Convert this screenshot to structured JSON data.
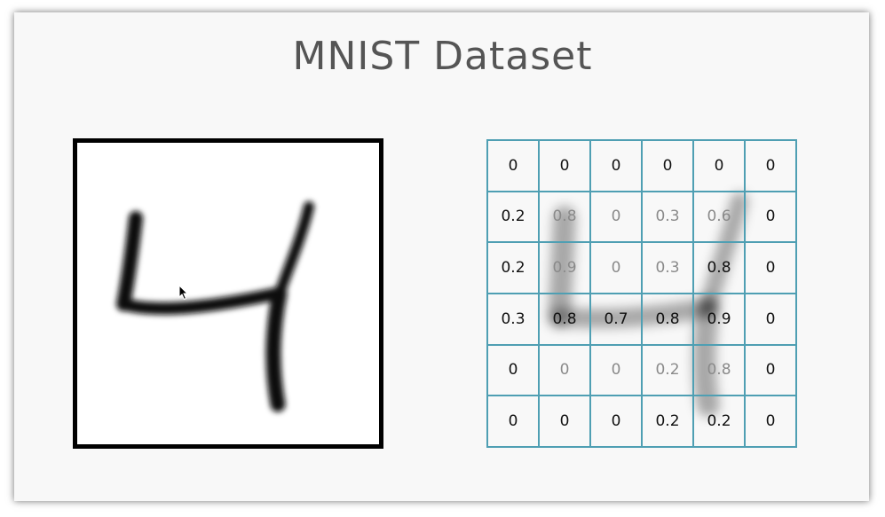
{
  "title": "MNIST Dataset",
  "image_panel": {
    "digit": "4",
    "cursor_icon": "arrow-cursor"
  },
  "grid": {
    "rows": [
      [
        "0",
        "0",
        "0",
        "0",
        "0",
        "0"
      ],
      [
        "0.2",
        "0.8",
        "0",
        "0.3",
        "0.6",
        "0"
      ],
      [
        "0.2",
        "0.9",
        "0",
        "0.3",
        "0.8",
        "0"
      ],
      [
        "0.3",
        "0.8",
        "0.7",
        "0.8",
        "0.9",
        "0"
      ],
      [
        "0",
        "0",
        "0",
        "0.2",
        "0.8",
        "0"
      ],
      [
        "0",
        "0",
        "0",
        "0.2",
        "0.2",
        "0"
      ]
    ],
    "light_cells": [
      [
        1,
        1
      ],
      [
        1,
        2
      ],
      [
        1,
        3
      ],
      [
        1,
        4
      ],
      [
        2,
        1
      ],
      [
        2,
        2
      ],
      [
        2,
        3
      ],
      [
        4,
        1
      ],
      [
        4,
        2
      ],
      [
        4,
        3
      ],
      [
        4,
        4
      ]
    ],
    "border_color": "#4f9fb3"
  }
}
